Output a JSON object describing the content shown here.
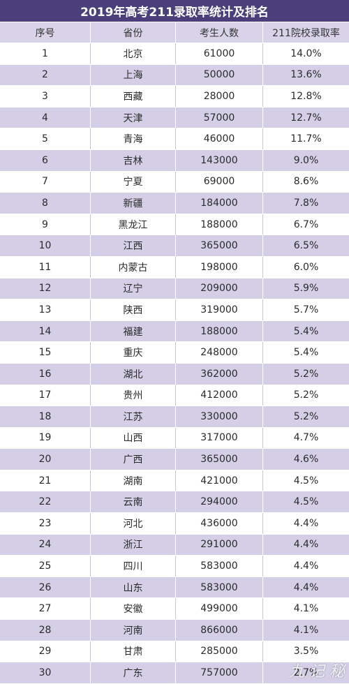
{
  "title": "2019年高考211录取率统计及排名",
  "columns": [
    "序号",
    "省份",
    "考生人数",
    "211院校录取率"
  ],
  "rows": [
    [
      "1",
      "北京",
      "61000",
      "14.0%"
    ],
    [
      "2",
      "上海",
      "50000",
      "13.6%"
    ],
    [
      "3",
      "西藏",
      "28000",
      "12.8%"
    ],
    [
      "4",
      "天津",
      "57000",
      "12.7%"
    ],
    [
      "5",
      "青海",
      "46000",
      "11.7%"
    ],
    [
      "6",
      "吉林",
      "143000",
      "9.0%"
    ],
    [
      "7",
      "宁夏",
      "69000",
      "8.6%"
    ],
    [
      "8",
      "新疆",
      "184000",
      "7.8%"
    ],
    [
      "9",
      "黑龙江",
      "188000",
      "6.7%"
    ],
    [
      "10",
      "江西",
      "365000",
      "6.5%"
    ],
    [
      "11",
      "内蒙古",
      "198000",
      "6.0%"
    ],
    [
      "12",
      "辽宁",
      "209000",
      "5.9%"
    ],
    [
      "13",
      "陕西",
      "319000",
      "5.7%"
    ],
    [
      "14",
      "福建",
      "188000",
      "5.4%"
    ],
    [
      "15",
      "重庆",
      "248000",
      "5.4%"
    ],
    [
      "16",
      "湖北",
      "362000",
      "5.2%"
    ],
    [
      "17",
      "贵州",
      "412000",
      "5.2%"
    ],
    [
      "18",
      "江苏",
      "330000",
      "5.2%"
    ],
    [
      "19",
      "山西",
      "317000",
      "4.7%"
    ],
    [
      "20",
      "广西",
      "365000",
      "4.6%"
    ],
    [
      "21",
      "湖南",
      "421000",
      "4.5%"
    ],
    [
      "22",
      "云南",
      "294000",
      "4.5%"
    ],
    [
      "23",
      "河北",
      "436000",
      "4.4%"
    ],
    [
      "24",
      "浙江",
      "291000",
      "4.4%"
    ],
    [
      "25",
      "四川",
      "583000",
      "4.4%"
    ],
    [
      "26",
      "山东",
      "583000",
      "4.4%"
    ],
    [
      "27",
      "安徽",
      "499000",
      "4.1%"
    ],
    [
      "28",
      "河南",
      "866000",
      "4.1%"
    ],
    [
      "29",
      "甘肃",
      "285000",
      "3.5%"
    ],
    [
      "30",
      "广东",
      "757000",
      "2.7%"
    ]
  ],
  "colors": {
    "title_bg": "#4a3f7a",
    "header_bg": "#d8d3e8",
    "stripe_bg": "#d4cfe6"
  },
  "watermark": "九 记 秘"
}
